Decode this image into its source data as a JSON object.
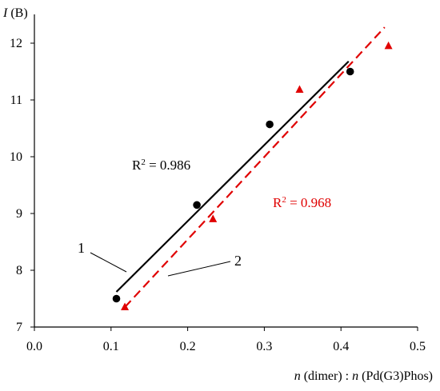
{
  "chart_data": {
    "type": "scatter",
    "title": "",
    "xlabel": "n (dimer) : n (Pd(G3)Phos)",
    "xlabel_parts": {
      "n1": "n",
      "t1": " (dimer) : ",
      "n2": "n",
      "t2": " (Pd(G3)Phos)"
    },
    "ylabel": "I (B)",
    "ylabel_parts": {
      "i": "I",
      "t": " (B)"
    },
    "xlim": [
      0.0,
      0.5
    ],
    "ylim": [
      7,
      12.3
    ],
    "xticks": [
      "0.0",
      "0.1",
      "0.2",
      "0.3",
      "0.4",
      "0.5"
    ],
    "yticks": [
      "7",
      "8",
      "9",
      "10",
      "11",
      "12"
    ],
    "grid": false,
    "legend": "none",
    "series": [
      {
        "id": "1",
        "color": "#000000",
        "marker": "circle",
        "line_style": "solid",
        "points": [
          {
            "x": 0.107,
            "y": 7.5
          },
          {
            "x": 0.212,
            "y": 9.15
          },
          {
            "x": 0.307,
            "y": 10.57
          },
          {
            "x": 0.412,
            "y": 11.5
          }
        ],
        "fit": {
          "x": [
            0.107,
            0.41
          ],
          "y": [
            7.62,
            11.68
          ]
        },
        "r2_text": "R2 = 0.986"
      },
      {
        "id": "2",
        "color": "#e00000",
        "marker": "triangle",
        "line_style": "dashed",
        "points": [
          {
            "x": 0.118,
            "y": 7.35
          },
          {
            "x": 0.233,
            "y": 8.9
          },
          {
            "x": 0.346,
            "y": 11.18
          },
          {
            "x": 0.462,
            "y": 11.95
          }
        ],
        "fit": {
          "x": [
            0.118,
            0.457
          ],
          "y": [
            7.35,
            12.28
          ]
        },
        "r2_text": "R2 = 0.968"
      }
    ],
    "annotations": {
      "r2_black": {
        "prefix": "R",
        "sup": "2",
        "suffix": " = 0.986"
      },
      "r2_red": {
        "prefix": "R",
        "sup": "2",
        "suffix": " = 0.968"
      },
      "label_1": "1",
      "label_2": "2"
    }
  }
}
